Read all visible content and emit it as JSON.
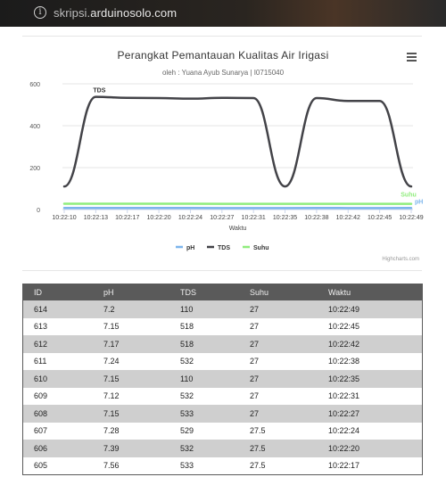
{
  "browser": {
    "url_prefix": "skripsi.",
    "url_domain": "arduinosolo.com"
  },
  "chart": {
    "menu_icon": "hamburger-menu-icon",
    "credits": "Highcharts.com"
  },
  "chart_data": {
    "type": "line",
    "title": "Perangkat Pemantauan Kualitas Air Irigasi",
    "subtitle": "oleh : Yuana Ayub Sunarya | I0715040",
    "xlabel": "Waktu",
    "ylabel": "",
    "ylim": [
      0,
      600
    ],
    "yticks": [
      0,
      200,
      400,
      600
    ],
    "grid": true,
    "legend_position": "bottom-center",
    "categories": [
      "10:22:10",
      "10:22:13",
      "10:22:17",
      "10:22:20",
      "10:22:24",
      "10:22:27",
      "10:22:31",
      "10:22:35",
      "10:22:38",
      "10:22:42",
      "10:22:45",
      "10:22:49"
    ],
    "series": [
      {
        "name": "pH",
        "color": "#7cb5ec",
        "values": [
          7.6,
          7.5,
          7.56,
          7.39,
          7.28,
          7.15,
          7.12,
          7.15,
          7.24,
          7.17,
          7.15,
          7.2
        ],
        "label": "pH"
      },
      {
        "name": "TDS",
        "color": "#434348",
        "values": [
          110,
          538,
          533,
          532,
          529,
          533,
          532,
          110,
          532,
          518,
          518,
          110
        ],
        "label": "TDS"
      },
      {
        "name": "Suhu",
        "color": "#90ed7d",
        "values": [
          27.5,
          27.5,
          27.5,
          27.5,
          27.5,
          27,
          27,
          27,
          27,
          27,
          27,
          27
        ],
        "label": "Suhu"
      }
    ]
  },
  "table": {
    "headers": [
      "ID",
      "pH",
      "TDS",
      "Suhu",
      "Waktu"
    ],
    "rows": [
      [
        "614",
        "7.2",
        "110",
        "27",
        "10:22:49"
      ],
      [
        "613",
        "7.15",
        "518",
        "27",
        "10:22:45"
      ],
      [
        "612",
        "7.17",
        "518",
        "27",
        "10:22:42"
      ],
      [
        "611",
        "7.24",
        "532",
        "27",
        "10:22:38"
      ],
      [
        "610",
        "7.15",
        "110",
        "27",
        "10:22:35"
      ],
      [
        "609",
        "7.12",
        "532",
        "27",
        "10:22:31"
      ],
      [
        "608",
        "7.15",
        "533",
        "27",
        "10:22:27"
      ],
      [
        "607",
        "7.28",
        "529",
        "27.5",
        "10:22:24"
      ],
      [
        "606",
        "7.39",
        "532",
        "27.5",
        "10:22:20"
      ],
      [
        "605",
        "7.56",
        "533",
        "27.5",
        "10:22:17"
      ]
    ]
  }
}
